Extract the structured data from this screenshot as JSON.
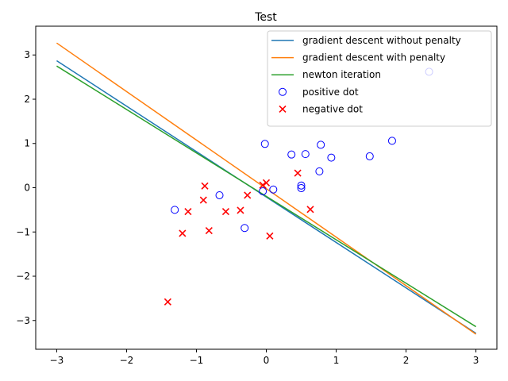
{
  "chart_data": {
    "type": "scatter",
    "title": "Test",
    "xlabel": "",
    "ylabel": "",
    "xlim": [
      -3.3,
      3.3
    ],
    "ylim": [
      -3.65,
      3.65
    ],
    "xticks": [
      -3,
      -2,
      -1,
      0,
      1,
      2,
      3
    ],
    "yticks": [
      -3,
      -2,
      -1,
      0,
      1,
      2,
      3
    ],
    "tick_labels_x": [
      "−3",
      "−2",
      "−1",
      "0",
      "1",
      "2",
      "3"
    ],
    "tick_labels_y": [
      "−3",
      "−2",
      "−1",
      "0",
      "1",
      "2",
      "3"
    ],
    "grid": false,
    "legend_position": "top-right",
    "lines": [
      {
        "name": "gradient descent without penalty",
        "color": "#1f77b4",
        "x": [
          -3,
          3
        ],
        "y": [
          2.87,
          -3.29
        ]
      },
      {
        "name": "gradient descent with penalty",
        "color": "#ff7f0e",
        "x": [
          -3,
          3
        ],
        "y": [
          3.27,
          -3.31
        ]
      },
      {
        "name": "newton iteration",
        "color": "#2ca02c",
        "x": [
          -3,
          3
        ],
        "y": [
          2.75,
          -3.14
        ]
      }
    ],
    "scatter": [
      {
        "name": "positive dot",
        "marker": "circle",
        "color": "#0000ff",
        "points": [
          [
            -1.31,
            -0.5
          ],
          [
            -0.67,
            -0.17
          ],
          [
            -0.31,
            -0.91
          ],
          [
            -0.05,
            -0.08
          ],
          [
            -0.02,
            0.99
          ],
          [
            0.1,
            -0.04
          ],
          [
            0.36,
            0.75
          ],
          [
            0.5,
            0.05
          ],
          [
            0.5,
            -0.01
          ],
          [
            0.56,
            0.76
          ],
          [
            0.76,
            0.37
          ],
          [
            0.78,
            0.97
          ],
          [
            0.93,
            0.68
          ],
          [
            1.48,
            0.71
          ],
          [
            1.8,
            1.06
          ],
          [
            2.33,
            2.62
          ]
        ]
      },
      {
        "name": "negative dot",
        "marker": "x",
        "color": "#ff0000",
        "points": [
          [
            -1.41,
            -2.58
          ],
          [
            -1.2,
            -1.03
          ],
          [
            -1.12,
            -0.54
          ],
          [
            -0.9,
            -0.28
          ],
          [
            -0.88,
            0.04
          ],
          [
            -0.82,
            -0.97
          ],
          [
            -0.58,
            -0.54
          ],
          [
            -0.37,
            -0.51
          ],
          [
            -0.27,
            -0.17
          ],
          [
            -0.05,
            0.06
          ],
          [
            0.0,
            0.11
          ],
          [
            0.05,
            -1.09
          ],
          [
            0.45,
            0.33
          ],
          [
            0.63,
            -0.49
          ]
        ]
      }
    ]
  }
}
